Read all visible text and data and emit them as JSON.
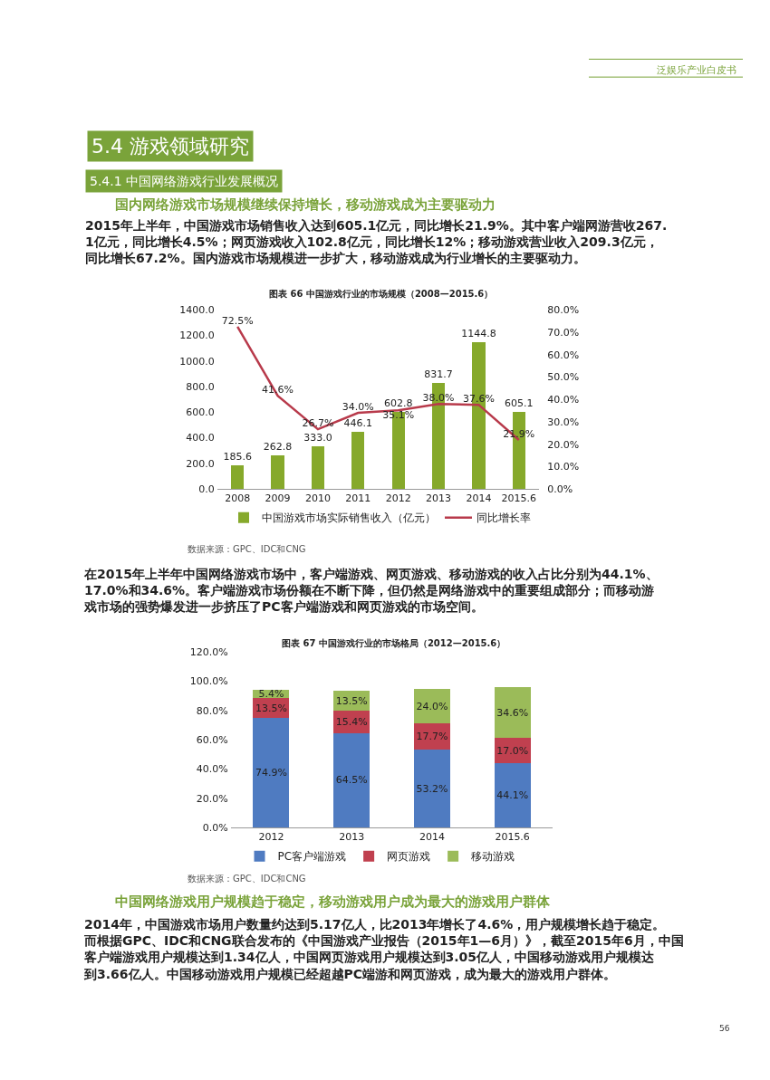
{
  "chart_data": [
    {
      "type": "bar",
      "title": "图表 66 中国游戏行业的市场规模（2008—2015.6）",
      "annotations": [
        "泛娱乐产业白皮书",
        "5.4 游戏领域研究",
        "5.4.1 中国网络游戏行业发展概况",
        "国内网络游戏市场规模继续保持增长，移动游戏成为主要驱动力",
        "2015年上半年，中国游戏市场销售收入达到605.1亿元，同比增长21.9%。其中客户端网游营收267.1亿元，同比增长4.5%；网页游戏收入102.8亿元，同比增长12%；移动游戏营业收入209.3亿元，同比增长67.2%。国内游戏市场规模进一步扩大，移动游戏成为行业增长的主要驱动力。",
        "数据来源：GPC、IDC和CNG"
      ],
      "categories": [
        "2008",
        "2009",
        "2010",
        "2011",
        "2012",
        "2013",
        "2014",
        "2015.6"
      ],
      "series": [
        {
          "name": "中国游戏市场实际销售收入（亿元）",
          "color": "#86a92b",
          "values": [
            185.6,
            262.8,
            333.0,
            446.1,
            602.8,
            831.7,
            1144.8,
            605.1
          ],
          "value_labels": [
            "185.6",
            "262.8",
            "333.0",
            "446.1",
            "602.8",
            "831.7",
            "1144.8",
            "605.1"
          ]
        },
        {
          "name": "同比增长率",
          "type": "line",
          "axis": "y2",
          "color": "#b83a4b",
          "values": [
            72.5,
            41.6,
            26.7,
            34.0,
            35.1,
            38.0,
            37.6,
            21.9
          ],
          "value_labels": [
            "72.5%",
            "41.6%",
            "26.7%",
            "34.0%",
            "35.1%",
            "38.0%",
            "37.6%",
            "21.9%"
          ]
        }
      ],
      "ylim": [
        0,
        1400
      ],
      "yticks": [
        {
          "value": 0,
          "label": "0.0"
        },
        {
          "value": 200,
          "label": "200.0"
        },
        {
          "value": 400,
          "label": "400.0"
        },
        {
          "value": 600,
          "label": "600.0"
        },
        {
          "value": 800,
          "label": "800.0"
        },
        {
          "value": 1000,
          "label": "1000.0"
        },
        {
          "value": 1200,
          "label": "1200.0"
        },
        {
          "value": 1400,
          "label": "1400.0"
        }
      ],
      "y2lim": [
        0,
        80
      ],
      "y2ticks": [
        {
          "value": 0,
          "label": "0.0%"
        },
        {
          "value": 10,
          "label": "10.0%"
        },
        {
          "value": 20,
          "label": "20.0%"
        },
        {
          "value": 30,
          "label": "30.0%"
        },
        {
          "value": 40,
          "label": "40.0%"
        },
        {
          "value": 50,
          "label": "50.0%"
        },
        {
          "value": 60,
          "label": "60.0%"
        },
        {
          "value": 70,
          "label": "70.0%"
        },
        {
          "value": 80,
          "label": "80.0%"
        }
      ],
      "legend": "bottom"
    },
    {
      "type": "bar",
      "stacked": true,
      "title": "图表 67 中国游戏行业的市场格局（2012—2015.6）",
      "annotations": [
        "在2015年上半年中国网络游戏市场中，客户端游戏、网页游戏、移动游戏的收入占比分别为44.1%、17.0%和34.6%。客户端游戏市场份额在不断下降，但仍然是网络游戏中的重要组成部分；而移动游戏市场的强势爆发进一步挤压了PC客户端游戏和网页游戏的市场空间。",
        "数据来源：GPC、IDC和CNG",
        "中国网络游戏用户规模趋于稳定，移动游戏用户成为最大的游戏用户群体",
        "2014年，中国游戏市场用户数量约达到5.17亿人，比2013年增长了4.6%，用户规模增长趋于稳定。而根据GPC、IDC和CNG联合发布的《中国游戏产业报告（2015年1—6月）》，截至2015年6月，中国客户端游戏用户规模达到1.34亿人，中国网页游戏用户规模达到3.05亿人，中国移动游戏用户规模达到3.66亿人。中国移动游戏用户规模已经超越PC端游和网页游戏，成为最大的游戏用户群体。",
        "56"
      ],
      "categories": [
        "2012",
        "2013",
        "2014",
        "2015.6"
      ],
      "series": [
        {
          "name": "PC客户端游戏",
          "color": "#4f7bc1",
          "values": [
            74.9,
            64.5,
            53.2,
            44.1
          ],
          "value_labels": [
            "74.9%",
            "64.5%",
            "53.2%",
            "44.1%"
          ]
        },
        {
          "name": "网页游戏",
          "color": "#c0404f",
          "values": [
            13.5,
            15.4,
            17.7,
            17.0
          ],
          "value_labels": [
            "13.5%",
            "15.4%",
            "17.7%",
            "17.0%"
          ]
        },
        {
          "name": "移动游戏",
          "color": "#9bbb59",
          "values": [
            5.4,
            13.5,
            24.0,
            34.6
          ],
          "value_labels": [
            "5.4%",
            "13.5%",
            "24.0%",
            "34.6%"
          ]
        }
      ],
      "ylim": [
        0,
        120
      ],
      "yticks": [
        {
          "value": 0,
          "label": "0.0%"
        },
        {
          "value": 20,
          "label": "20.0%"
        },
        {
          "value": 40,
          "label": "40.0%"
        },
        {
          "value": 60,
          "label": "60.0%"
        },
        {
          "value": 80,
          "label": "80.0%"
        },
        {
          "value": 100,
          "label": "100.0%"
        },
        {
          "value": 120,
          "label": "120.0%"
        }
      ],
      "legend": "bottom"
    }
  ]
}
